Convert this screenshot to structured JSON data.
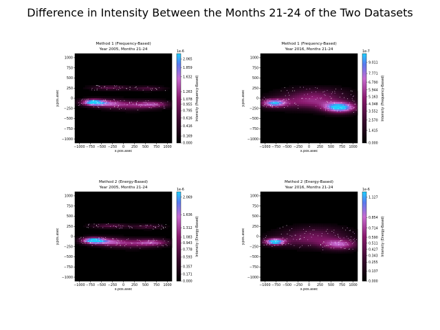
{
  "figure": {
    "title": "Difference in Intensity Between the Months 21-24 of the Two Datasets"
  },
  "chart_data": [
    {
      "type": "heatmap",
      "title": "Method 1 (Frequency-Based)",
      "subtitle": "Year 2005, Months 21-24",
      "xlabel": "x.pos.asec",
      "ylabel": "y.pos.asec",
      "xlim": [
        -1100,
        1100
      ],
      "ylim": [
        -1100,
        1100
      ],
      "xticks": [
        -1000,
        -750,
        -500,
        -250,
        0,
        250,
        500,
        750,
        1000
      ],
      "yticks": [
        1000,
        750,
        500,
        250,
        0,
        -250,
        -500,
        -750,
        -1000
      ],
      "colorbar": {
        "label": "Intensity (Frequency-Based)",
        "exponent": "1e-6",
        "ticks": [
          "2.065",
          "1.859",
          "1.632",
          "1.263",
          "1.078",
          "0.955",
          "0.795",
          "0.616",
          "0.416",
          "0.169",
          "0.000"
        ],
        "max": 2.2
      },
      "hotspots": [
        {
          "x": -700,
          "y": -100,
          "sx": 180,
          "sy": 55,
          "v": 1.0
        },
        {
          "x": -350,
          "y": -130,
          "sx": 250,
          "sy": 70,
          "v": 0.55
        },
        {
          "x": 200,
          "y": -170,
          "sx": 350,
          "sy": 80,
          "v": 0.45
        },
        {
          "x": 700,
          "y": -150,
          "sx": 250,
          "sy": 60,
          "v": 0.5
        },
        {
          "x": -300,
          "y": 260,
          "sx": 300,
          "sy": 40,
          "v": 0.35
        },
        {
          "x": 550,
          "y": 240,
          "sx": 250,
          "sy": 40,
          "v": 0.3
        }
      ]
    },
    {
      "type": "heatmap",
      "title": "Method 1 (Frequency-Based)",
      "subtitle": "Year 2016, Months 21-24",
      "xlabel": "x.pos.asec",
      "ylabel": "y.pos.asec",
      "xlim": [
        -1100,
        1100
      ],
      "ylim": [
        -1100,
        1100
      ],
      "xticks": [
        -1000,
        -750,
        -500,
        -250,
        0,
        250,
        500,
        750,
        1000
      ],
      "yticks": [
        1000,
        750,
        500,
        250,
        0,
        -250,
        -500,
        -750,
        -1000
      ],
      "colorbar": {
        "label": "Intensity (Frequency-Based)",
        "exponent": "1e-7",
        "ticks": [
          "9.011",
          "7.771",
          "6.790",
          "5.944",
          "5.163",
          "4.348",
          "3.552",
          "2.570",
          "1.415",
          "0.000"
        ],
        "max": 10
      },
      "hotspots": [
        {
          "x": -800,
          "y": -120,
          "sx": 200,
          "sy": 70,
          "v": 0.8
        },
        {
          "x": 700,
          "y": -230,
          "sx": 260,
          "sy": 90,
          "v": 1.0
        },
        {
          "x": 0,
          "y": -100,
          "sx": 600,
          "sy": 120,
          "v": 0.45
        },
        {
          "x": 150,
          "y": 100,
          "sx": 500,
          "sy": 120,
          "v": 0.3
        }
      ]
    },
    {
      "type": "heatmap",
      "title": "Method 2 (Energy-Based)",
      "subtitle": "Year 2005, Months 21-24",
      "xlabel": "x.pos.asec",
      "ylabel": "y.pos.asec",
      "xlim": [
        -1100,
        1100
      ],
      "ylim": [
        -1100,
        1100
      ],
      "xticks": [
        -1000,
        -750,
        -500,
        -250,
        0,
        250,
        500,
        750,
        1000
      ],
      "yticks": [
        1000,
        750,
        500,
        250,
        0,
        -250,
        -500,
        -750,
        -1000
      ],
      "colorbar": {
        "label": "Intensity (Energy-Based)",
        "exponent": "1e-6",
        "ticks": [
          "2.069",
          "1.636",
          "1.312",
          "1.083",
          "0.943",
          "0.778",
          "0.593",
          "0.357",
          "0.171",
          "0.000"
        ],
        "max": 2.2
      },
      "hotspots": [
        {
          "x": -700,
          "y": -100,
          "sx": 180,
          "sy": 55,
          "v": 1.0
        },
        {
          "x": -350,
          "y": -130,
          "sx": 250,
          "sy": 70,
          "v": 0.55
        },
        {
          "x": 200,
          "y": -170,
          "sx": 350,
          "sy": 80,
          "v": 0.45
        },
        {
          "x": 700,
          "y": -150,
          "sx": 250,
          "sy": 60,
          "v": 0.5
        },
        {
          "x": -300,
          "y": 260,
          "sx": 300,
          "sy": 40,
          "v": 0.35
        },
        {
          "x": 550,
          "y": 240,
          "sx": 250,
          "sy": 40,
          "v": 0.3
        }
      ]
    },
    {
      "type": "heatmap",
      "title": "Method 2 (Energy-Based)",
      "subtitle": "Year 2016, Months 21-24",
      "xlabel": "x.pos.asec",
      "ylabel": "y.pos.asec",
      "xlim": [
        -1100,
        1100
      ],
      "ylim": [
        -1100,
        1100
      ],
      "xticks": [
        -1000,
        -750,
        -500,
        -250,
        0,
        250,
        500,
        750,
        1000
      ],
      "yticks": [
        1000,
        750,
        500,
        250,
        0,
        -250,
        -500,
        -750,
        -1000
      ],
      "colorbar": {
        "label": "Intensity (Energy-Based)",
        "exponent": "1e-6",
        "ticks": [
          "1.127",
          "0.854",
          "0.714",
          "0.590",
          "0.511",
          "0.427",
          "0.343",
          "0.255",
          "0.137",
          "0.000"
        ],
        "max": 1.2
      },
      "hotspots": [
        {
          "x": -780,
          "y": -130,
          "sx": 160,
          "sy": 55,
          "v": 1.0
        },
        {
          "x": 700,
          "y": -200,
          "sx": 280,
          "sy": 90,
          "v": 0.6
        },
        {
          "x": 0,
          "y": -100,
          "sx": 600,
          "sy": 120,
          "v": 0.35
        },
        {
          "x": 150,
          "y": 100,
          "sx": 500,
          "sy": 120,
          "v": 0.25
        }
      ]
    }
  ],
  "colors": {
    "background": "#ffffff",
    "map_low": "#000000",
    "map_mid": "#8a1a6e",
    "map_high": "#1e90ff"
  }
}
